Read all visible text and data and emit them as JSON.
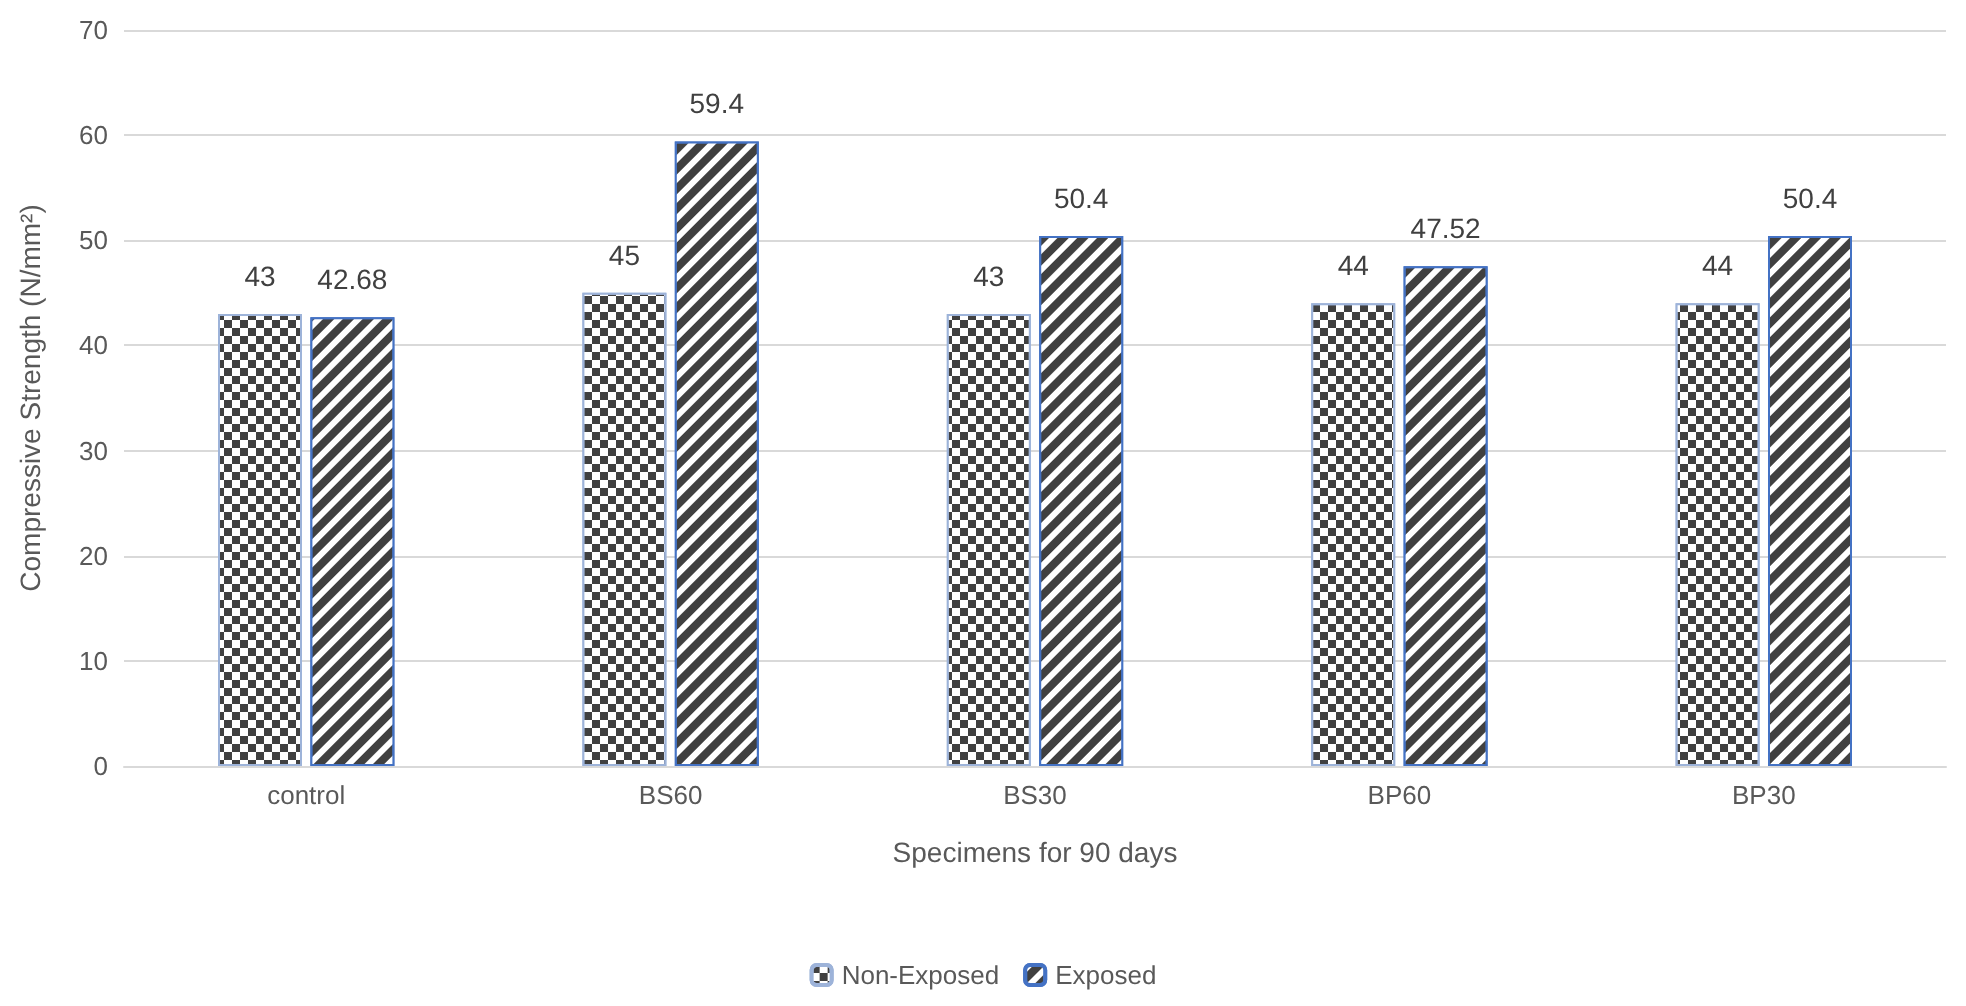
{
  "chart_data": {
    "type": "bar",
    "xlabel": "Specimens for 90 days",
    "ylabel": "Compressive Strength (N/mm²)",
    "categories": [
      "control",
      "BS60",
      "BS30",
      "BP60",
      "BP30"
    ],
    "series": [
      {
        "name": "Non-Exposed",
        "color": "#404040",
        "values": [
          43,
          45,
          43,
          44,
          44
        ]
      },
      {
        "name": "Exposed",
        "color": "#404040",
        "values": [
          42.68,
          59.4,
          50.4,
          47.52,
          50.4
        ]
      }
    ],
    "ylim": [
      0,
      70
    ],
    "yticks": [
      0,
      10,
      20,
      30,
      40,
      50,
      60,
      70
    ],
    "grid": "y",
    "legend": "bottom",
    "data_labels": true
  }
}
